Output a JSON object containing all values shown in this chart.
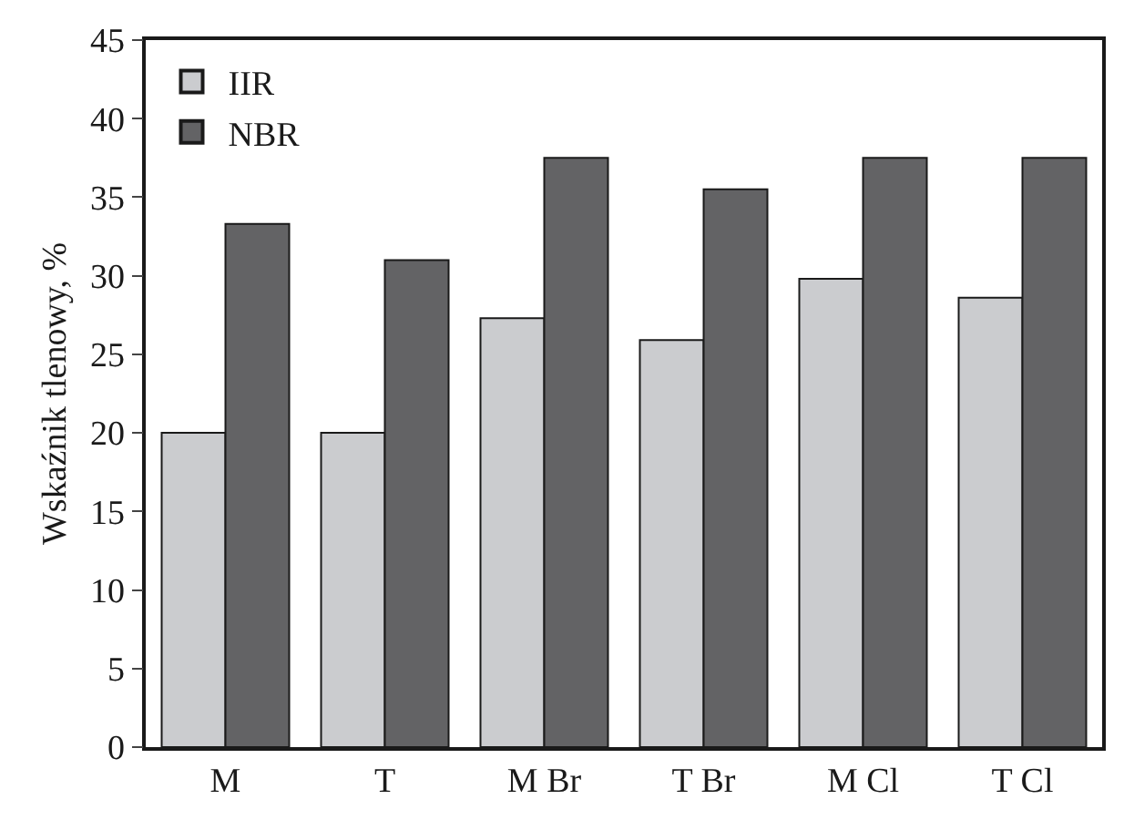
{
  "chart_data": {
    "type": "bar",
    "ylabel": "Wskaźnik tlenowy, %",
    "categories": [
      "M",
      "T",
      "M Br",
      "T Br",
      "M Cl",
      "T Cl"
    ],
    "series": [
      {
        "name": "IIR",
        "color": "#cbcccf",
        "values": [
          20.0,
          20.0,
          27.3,
          25.9,
          29.8,
          28.6
        ]
      },
      {
        "name": "NBR",
        "color": "#636365",
        "values": [
          33.3,
          31.0,
          37.5,
          35.5,
          37.5,
          37.5
        ]
      }
    ],
    "ylim": [
      0,
      45
    ],
    "yticks": [
      0,
      5,
      10,
      15,
      20,
      25,
      30,
      35,
      40,
      45
    ],
    "legend": "top left"
  }
}
